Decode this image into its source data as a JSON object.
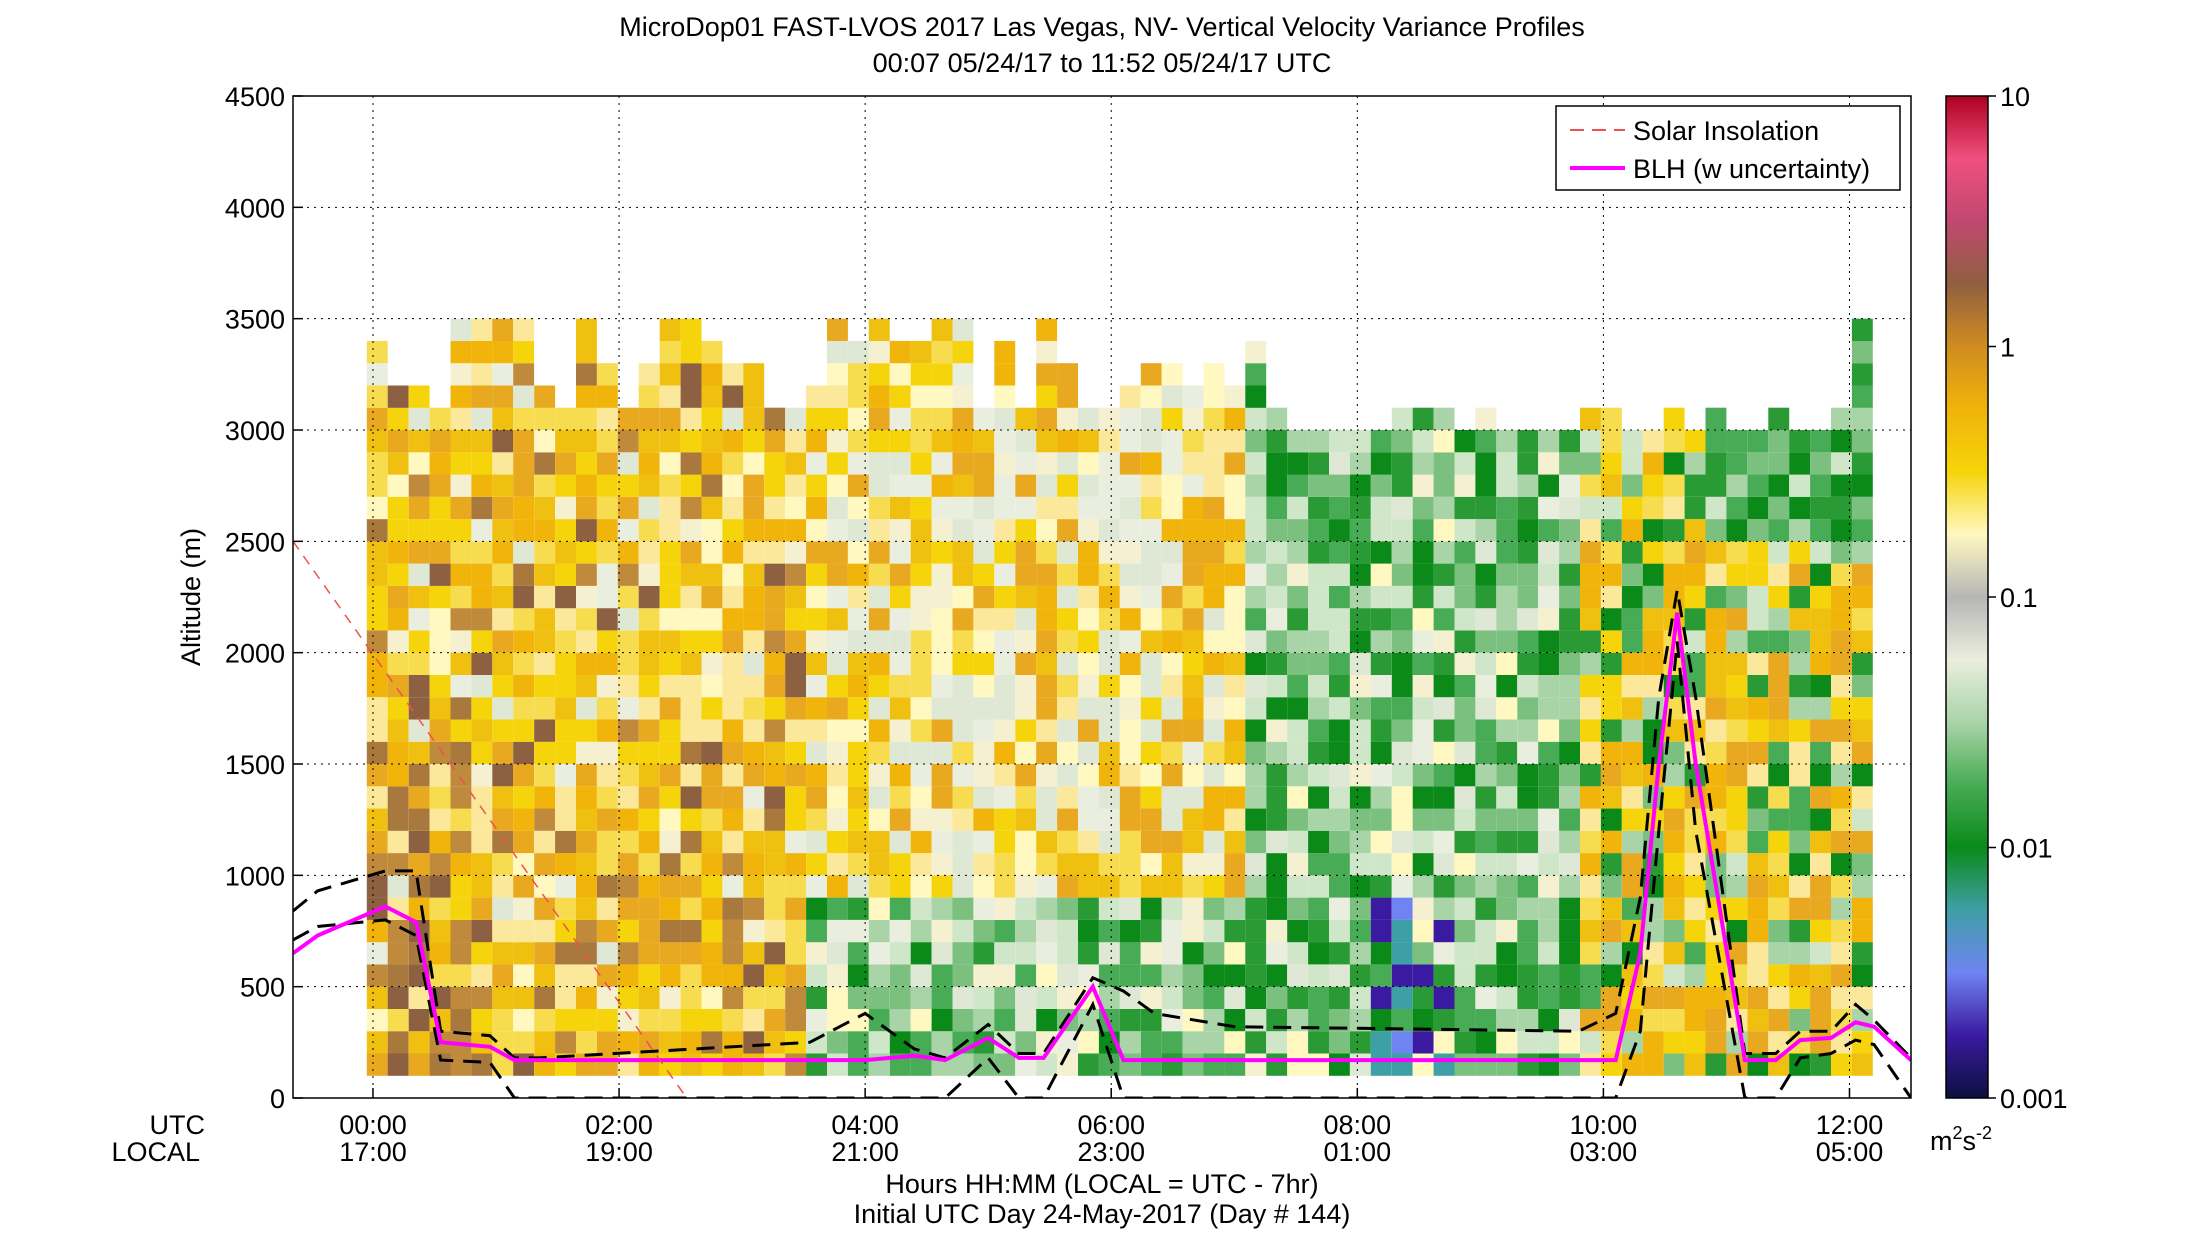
{
  "chart_data": {
    "type": "heatmap",
    "title": "MicroDop01 FAST-LVOS 2017 Las Vegas, NV- Vertical Velocity Variance Profiles",
    "subtitle": "00:07 05/24/17 to 11:52 05/24/17  UTC",
    "ylabel": "Altitude (m)",
    "xlabel": "Hours HH:MM  (LOCAL = UTC - 7hr)",
    "xlabel2": "Initial UTC Day 24-May-2017 (Day # 144)",
    "xlim_hours_utc": [
      -0.65,
      12.5
    ],
    "ylim": [
      0,
      4500
    ],
    "grid": true,
    "axis_row_labels": {
      "utc": "UTC",
      "local": "LOCAL"
    },
    "x_ticks": [
      {
        "hour": 0,
        "utc": "00:00",
        "local": "17:00"
      },
      {
        "hour": 2,
        "utc": "02:00",
        "local": "19:00"
      },
      {
        "hour": 4,
        "utc": "04:00",
        "local": "21:00"
      },
      {
        "hour": 6,
        "utc": "06:00",
        "local": "23:00"
      },
      {
        "hour": 8,
        "utc": "08:00",
        "local": "01:00"
      },
      {
        "hour": 10,
        "utc": "10:00",
        "local": "03:00"
      },
      {
        "hour": 12,
        "utc": "12:00",
        "local": "05:00"
      }
    ],
    "y_ticks": [
      0,
      500,
      1000,
      1500,
      2000,
      2500,
      3000,
      3500,
      4000,
      4500
    ],
    "colorbar": {
      "scale": "log",
      "range": [
        0.001,
        10
      ],
      "tick_values": [
        0.001,
        0.01,
        0.1,
        1,
        10
      ],
      "tick_labels": [
        "0.001",
        "0.01",
        "0.1",
        "1",
        "10"
      ],
      "unit_label": "m",
      "unit_superscript": "2",
      "unit_label2": "s",
      "unit_superscript2": "-2",
      "colors": [
        "#0d1040",
        "#3a1aa0",
        "#6f84f0",
        "#3f9fa6",
        "#0b8a1a",
        "#48ab55",
        "#a9d4a8",
        "#eaeede",
        "#b6b6b6",
        "#fff8c0",
        "#f6d40b",
        "#f0b40a",
        "#d08c20",
        "#906040",
        "#c04870",
        "#f05080",
        "#b00020"
      ]
    },
    "legend": {
      "position": "top-right",
      "entries": [
        {
          "label": "Solar Insolation",
          "color": "#f05050",
          "style": "dashed"
        },
        {
          "label": "BLH (w uncertainty)",
          "color": "#ff00ff",
          "style": "solid"
        }
      ]
    },
    "solar_insolation": {
      "x": [
        -0.65,
        2.55
      ],
      "y": [
        2500,
        0
      ]
    },
    "blh": {
      "x": [
        -0.65,
        -0.45,
        0.1,
        0.35,
        0.55,
        0.95,
        1.15,
        1.35,
        3.55,
        4.0,
        4.4,
        4.65,
        5.0,
        5.25,
        5.45,
        5.85,
        6.1,
        6.35,
        7.0,
        9.8,
        10.1,
        10.3,
        10.45,
        10.6,
        10.75,
        11.15,
        11.4,
        11.6,
        11.85,
        12.05,
        12.2,
        12.5
      ],
      "y": [
        650,
        730,
        860,
        790,
        250,
        230,
        170,
        170,
        170,
        170,
        190,
        170,
        270,
        180,
        180,
        500,
        170,
        170,
        170,
        170,
        170,
        650,
        1500,
        2180,
        1500,
        170,
        170,
        260,
        270,
        340,
        320,
        170
      ],
      "upper": [
        -0.65,
        -0.45,
        0.1,
        0.35,
        0.55,
        0.95,
        1.15,
        1.35,
        3.55,
        4.0,
        4.4,
        4.65,
        5.0,
        5.25,
        5.45,
        5.85,
        6.1,
        6.35,
        7.0,
        9.8,
        10.1,
        10.3,
        10.45,
        10.6,
        10.75,
        11.15,
        11.4,
        11.6,
        11.85,
        12.05,
        12.2,
        12.5
      ],
      "upper_y": [
        840,
        930,
        1020,
        1020,
        300,
        280,
        180,
        180,
        250,
        380,
        220,
        180,
        330,
        200,
        200,
        540,
        480,
        380,
        320,
        300,
        380,
        900,
        1800,
        2280,
        1800,
        200,
        200,
        300,
        300,
        420,
        350,
        180
      ],
      "lower_y": [
        710,
        770,
        800,
        730,
        170,
        160,
        0,
        0,
        0,
        0,
        0,
        0,
        180,
        0,
        0,
        420,
        0,
        0,
        0,
        0,
        0,
        300,
        1200,
        2050,
        1200,
        0,
        0,
        180,
        200,
        260,
        240,
        0
      ]
    }
  }
}
